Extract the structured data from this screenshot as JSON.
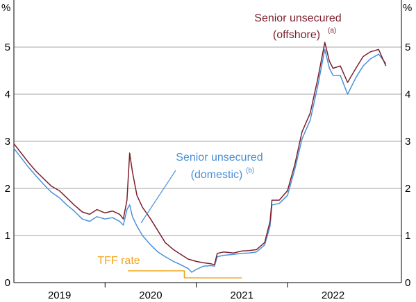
{
  "chart_data": {
    "type": "line",
    "title": "",
    "units": {
      "left": "%",
      "right": "%"
    },
    "y_axis": {
      "min": 0,
      "max": 6,
      "ticks": [
        0,
        1,
        2,
        3,
        4,
        5
      ]
    },
    "x_axis": {
      "start": 2018.5,
      "end": 2022.75,
      "labels": [
        "2019",
        "2020",
        "2021",
        "2022"
      ],
      "label_positions": [
        2019.0,
        2020.0,
        2021.0,
        2022.0
      ],
      "dividers": [
        2019.5,
        2020.5,
        2021.5
      ]
    },
    "grid": true,
    "annotations": {
      "offshore": {
        "line1": "Senior unsecured",
        "line2": "(offshore)",
        "note": "(a)"
      },
      "domestic": {
        "line1": "Senior unsecured",
        "line2": "(domestic)",
        "note": "(b)"
      },
      "tff": {
        "text": "TFF rate"
      }
    },
    "colors": {
      "offshore": "#7b1f2b",
      "domestic": "#4a90d9",
      "tff": "#f2a51a",
      "grid": "#a6a6a6"
    },
    "series": [
      {
        "key": "offshore",
        "points": [
          [
            2018.5,
            2.95
          ],
          [
            2018.58,
            2.75
          ],
          [
            2018.66,
            2.55
          ],
          [
            2018.75,
            2.35
          ],
          [
            2018.83,
            2.2
          ],
          [
            2018.91,
            2.05
          ],
          [
            2019.0,
            1.95
          ],
          [
            2019.08,
            1.8
          ],
          [
            2019.16,
            1.65
          ],
          [
            2019.25,
            1.5
          ],
          [
            2019.33,
            1.45
          ],
          [
            2019.41,
            1.55
          ],
          [
            2019.5,
            1.48
          ],
          [
            2019.58,
            1.52
          ],
          [
            2019.66,
            1.45
          ],
          [
            2019.7,
            1.35
          ],
          [
            2019.74,
            1.75
          ],
          [
            2019.77,
            2.75
          ],
          [
            2019.8,
            2.35
          ],
          [
            2019.85,
            1.85
          ],
          [
            2019.91,
            1.6
          ],
          [
            2020.0,
            1.35
          ],
          [
            2020.08,
            1.1
          ],
          [
            2020.16,
            0.85
          ],
          [
            2020.25,
            0.7
          ],
          [
            2020.33,
            0.6
          ],
          [
            2020.41,
            0.5
          ],
          [
            2020.5,
            0.45
          ],
          [
            2020.58,
            0.42
          ],
          [
            2020.66,
            0.4
          ],
          [
            2020.7,
            0.38
          ],
          [
            2020.73,
            0.62
          ],
          [
            2020.8,
            0.65
          ],
          [
            2020.91,
            0.63
          ],
          [
            2021.0,
            0.67
          ],
          [
            2021.08,
            0.68
          ],
          [
            2021.16,
            0.7
          ],
          [
            2021.25,
            0.85
          ],
          [
            2021.31,
            1.3
          ],
          [
            2021.33,
            1.75
          ],
          [
            2021.41,
            1.75
          ],
          [
            2021.5,
            1.95
          ],
          [
            2021.58,
            2.5
          ],
          [
            2021.66,
            3.2
          ],
          [
            2021.75,
            3.6
          ],
          [
            2021.83,
            4.3
          ],
          [
            2021.91,
            5.1
          ],
          [
            2021.96,
            4.7
          ],
          [
            2022.0,
            4.55
          ],
          [
            2022.08,
            4.6
          ],
          [
            2022.16,
            4.25
          ],
          [
            2022.25,
            4.55
          ],
          [
            2022.33,
            4.8
          ],
          [
            2022.41,
            4.9
          ],
          [
            2022.5,
            4.95
          ],
          [
            2022.58,
            4.6
          ]
        ]
      },
      {
        "key": "domestic",
        "points": [
          [
            2018.5,
            2.85
          ],
          [
            2018.58,
            2.65
          ],
          [
            2018.66,
            2.45
          ],
          [
            2018.75,
            2.25
          ],
          [
            2018.83,
            2.08
          ],
          [
            2018.91,
            1.92
          ],
          [
            2019.0,
            1.8
          ],
          [
            2019.08,
            1.65
          ],
          [
            2019.16,
            1.52
          ],
          [
            2019.25,
            1.35
          ],
          [
            2019.33,
            1.3
          ],
          [
            2019.41,
            1.4
          ],
          [
            2019.5,
            1.35
          ],
          [
            2019.58,
            1.38
          ],
          [
            2019.66,
            1.3
          ],
          [
            2019.7,
            1.22
          ],
          [
            2019.74,
            1.55
          ],
          [
            2019.77,
            1.65
          ],
          [
            2019.8,
            1.4
          ],
          [
            2019.85,
            1.2
          ],
          [
            2019.91,
            1.0
          ],
          [
            2020.0,
            0.8
          ],
          [
            2020.08,
            0.65
          ],
          [
            2020.16,
            0.55
          ],
          [
            2020.25,
            0.45
          ],
          [
            2020.33,
            0.38
          ],
          [
            2020.41,
            0.3
          ],
          [
            2020.45,
            0.22
          ],
          [
            2020.5,
            0.28
          ],
          [
            2020.58,
            0.35
          ],
          [
            2020.66,
            0.36
          ],
          [
            2020.7,
            0.35
          ],
          [
            2020.73,
            0.55
          ],
          [
            2020.8,
            0.58
          ],
          [
            2020.91,
            0.6
          ],
          [
            2021.0,
            0.62
          ],
          [
            2021.08,
            0.63
          ],
          [
            2021.16,
            0.65
          ],
          [
            2021.25,
            0.8
          ],
          [
            2021.31,
            1.2
          ],
          [
            2021.33,
            1.65
          ],
          [
            2021.41,
            1.68
          ],
          [
            2021.5,
            1.85
          ],
          [
            2021.58,
            2.4
          ],
          [
            2021.66,
            3.05
          ],
          [
            2021.75,
            3.45
          ],
          [
            2021.83,
            4.15
          ],
          [
            2021.91,
            4.95
          ],
          [
            2021.96,
            4.55
          ],
          [
            2022.0,
            4.4
          ],
          [
            2022.08,
            4.4
          ],
          [
            2022.16,
            4.0
          ],
          [
            2022.25,
            4.35
          ],
          [
            2022.33,
            4.6
          ],
          [
            2022.41,
            4.75
          ],
          [
            2022.5,
            4.85
          ],
          [
            2022.58,
            4.65
          ]
        ]
      },
      {
        "key": "tff",
        "points": [
          [
            2019.75,
            0.25
          ],
          [
            2020.37,
            0.25
          ],
          [
            2020.37,
            0.1
          ],
          [
            2021.0,
            0.1
          ]
        ]
      }
    ]
  }
}
